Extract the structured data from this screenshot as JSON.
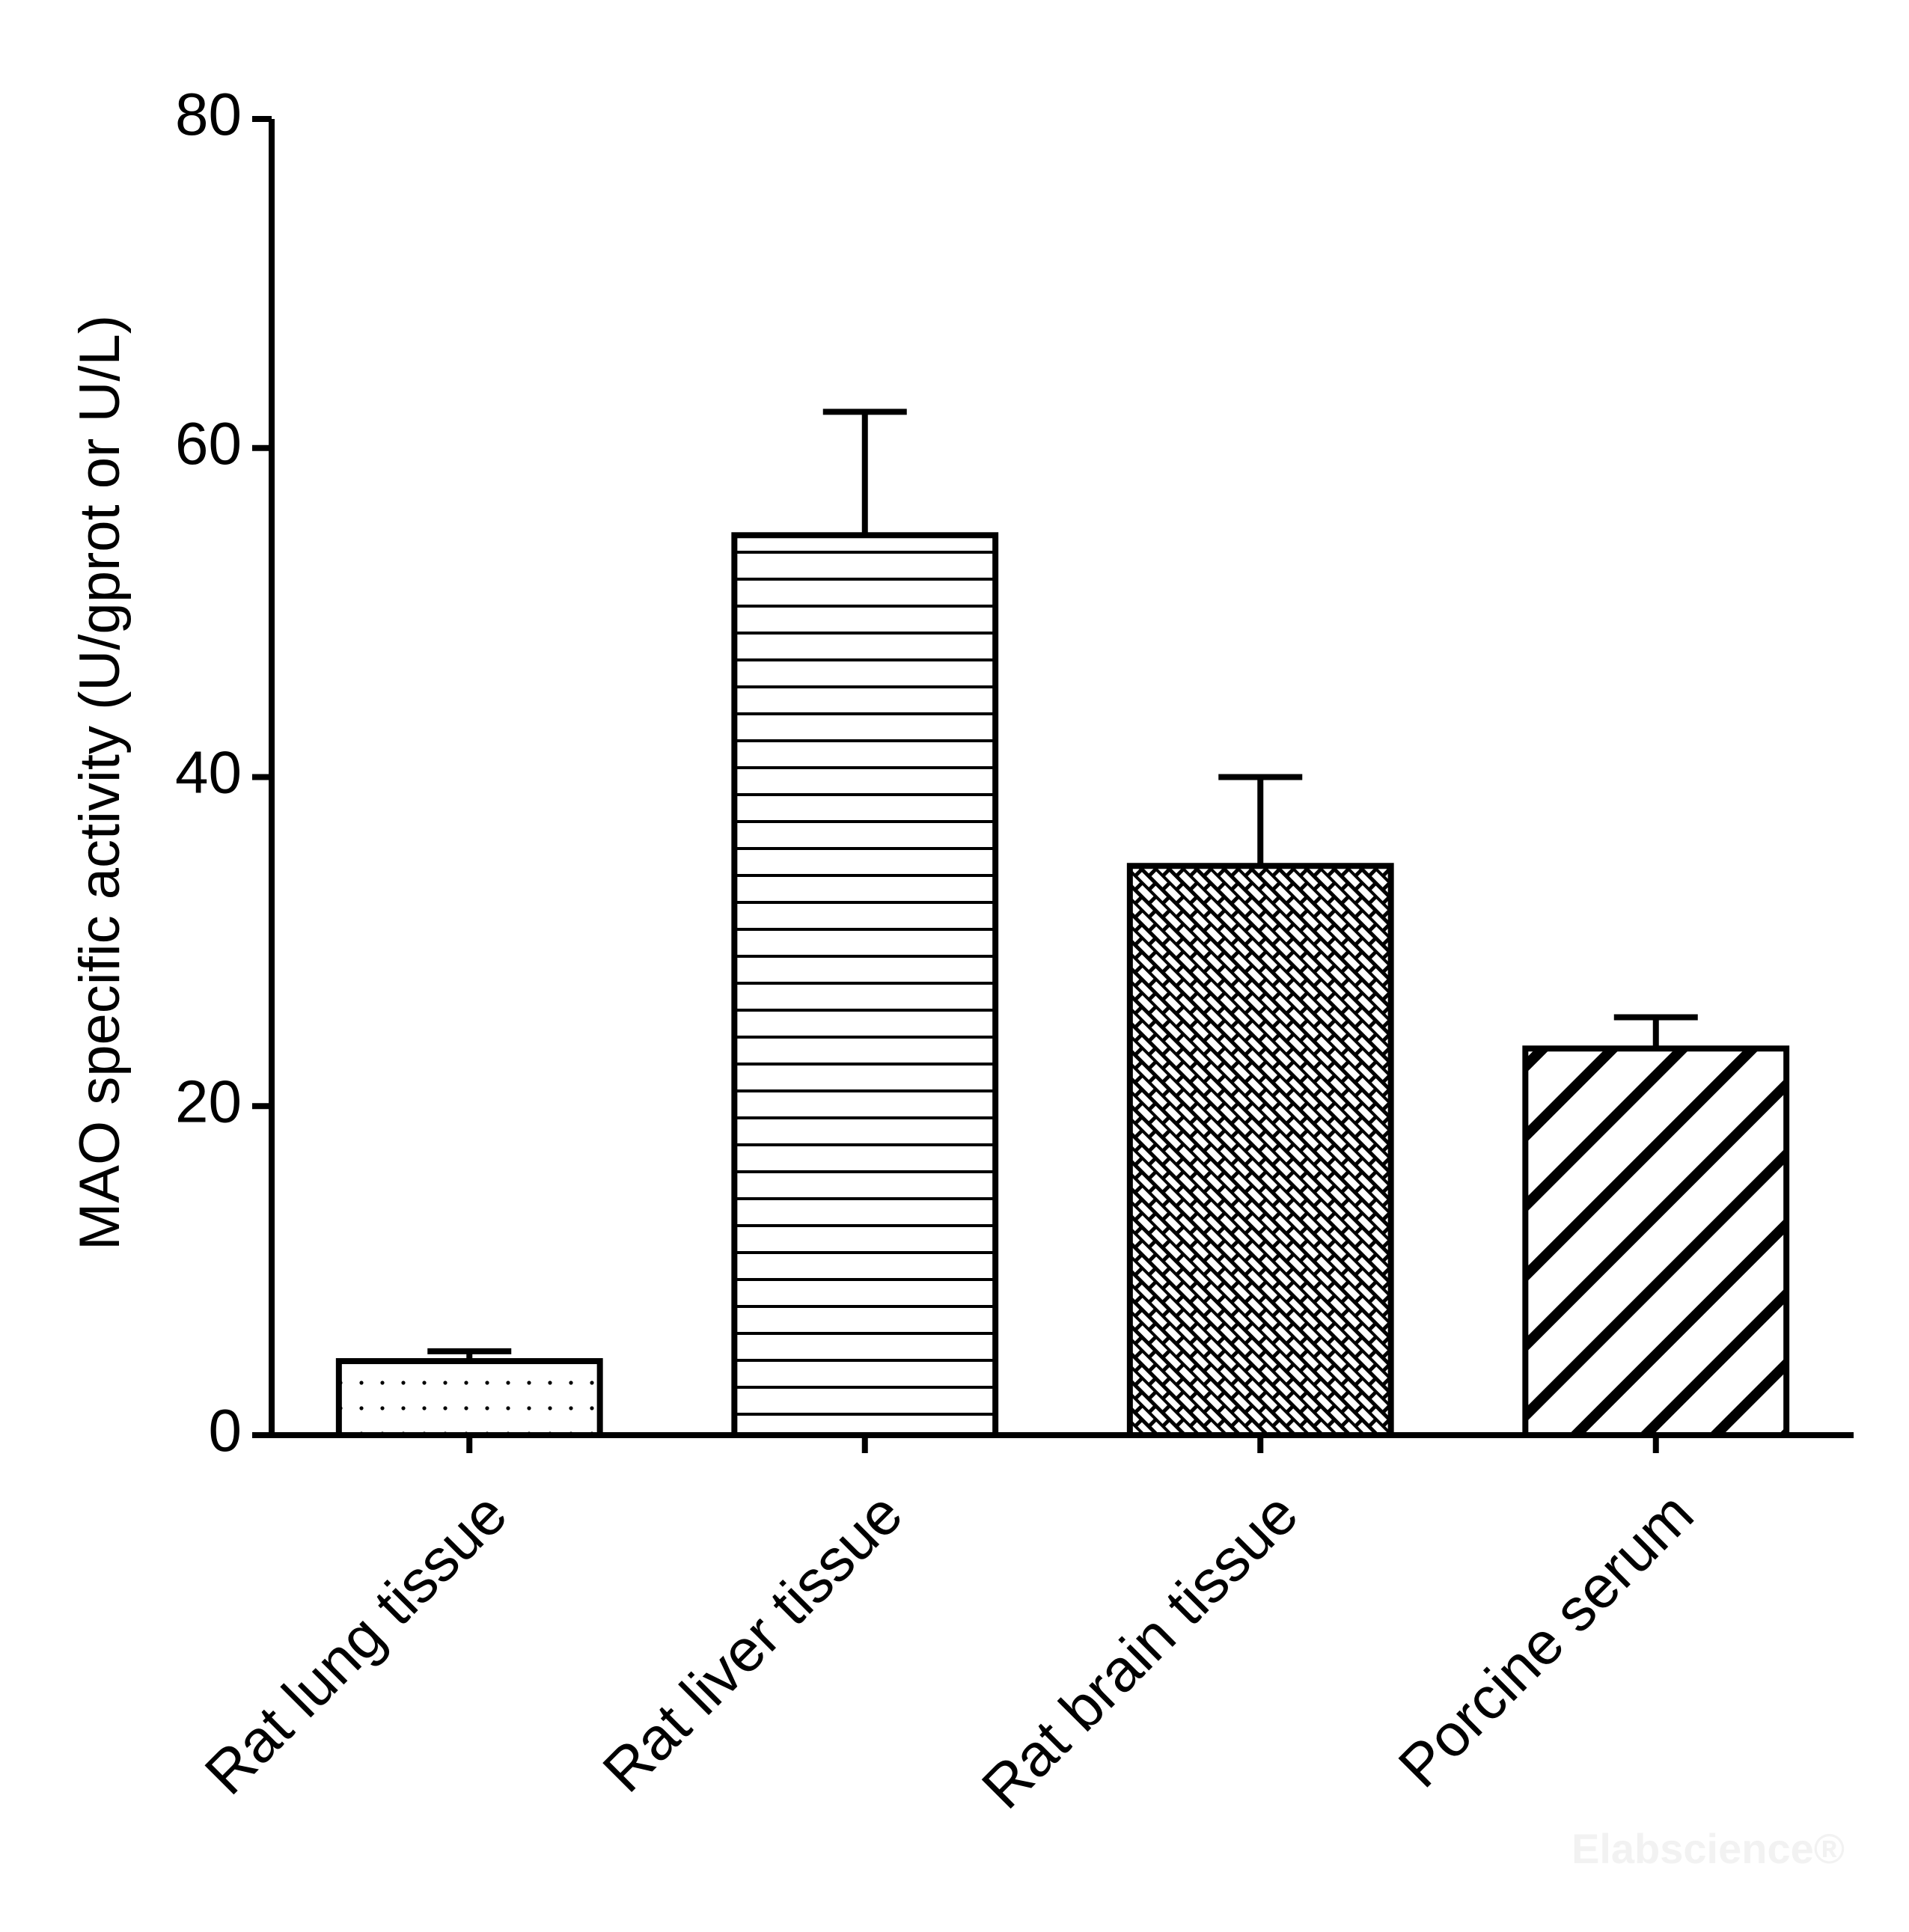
{
  "chart_data": {
    "type": "bar",
    "y_label": "MAO specific activity (U/gprot or U/L)",
    "categories": [
      "Rat lung tissue",
      "Rat liver tissue",
      "Rat brain tissue",
      "Porcine serum"
    ],
    "values": [
      4.5,
      54.7,
      34.6,
      23.5
    ],
    "errors": [
      0.6,
      7.5,
      5.4,
      1.9
    ],
    "patterns": [
      "dots",
      "horizontal",
      "crosshatch",
      "diagonal"
    ],
    "color": "#000000",
    "ylim": [
      0,
      80
    ],
    "yticks": [
      0,
      20,
      40,
      60,
      80
    ],
    "grid": false,
    "watermark": "Elabscience®"
  }
}
